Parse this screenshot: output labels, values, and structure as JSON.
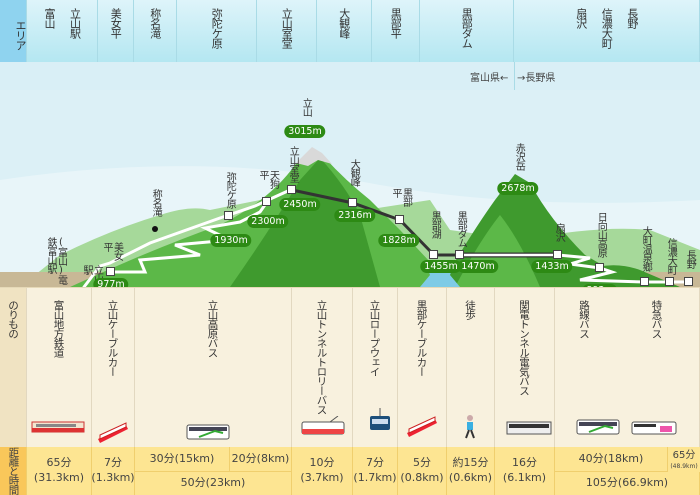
{
  "header": {
    "area_label": "エリア",
    "columns": [
      [
        "富山",
        "立山駅"
      ],
      [
        "美女平"
      ],
      [
        "称名滝"
      ],
      [
        "弥陀ケ原"
      ],
      [
        "立山室堂"
      ],
      [
        "大観峰"
      ],
      [
        "黒部平"
      ],
      [
        "黒部ダム"
      ],
      [
        "扇沢",
        "信濃大町",
        "長野"
      ]
    ],
    "pref_left": "富山県←",
    "pref_right": "→長野県"
  },
  "map": {
    "peaks": [
      {
        "name": "立山",
        "elevation": "3015m"
      },
      {
        "name": "赤沢岳",
        "elevation": "2678m"
      }
    ],
    "stations": [
      {
        "name": "(富山)電鉄富山駅",
        "elevation": ""
      },
      {
        "name": "立山駅",
        "elevation": "475m"
      },
      {
        "name": "美女平",
        "elevation": "977m"
      },
      {
        "name": "称名滝",
        "elevation": ""
      },
      {
        "name": "弥陀ケ原",
        "elevation": "1930m"
      },
      {
        "name": "天狗平",
        "elevation": "2300m"
      },
      {
        "name": "立山室堂",
        "elevation": "2450m"
      },
      {
        "name": "大観峰",
        "elevation": "2316m"
      },
      {
        "name": "黒部平",
        "elevation": "1828m"
      },
      {
        "name": "黒部湖",
        "elevation": "1455m"
      },
      {
        "name": "黒部ダム",
        "elevation": "1470m"
      },
      {
        "name": "扇沢",
        "elevation": "1433m"
      },
      {
        "name": "日向山高原",
        "elevation": "893m"
      },
      {
        "name": "大町温泉郷",
        "elevation": ""
      },
      {
        "name": "信濃大町",
        "elevation": ""
      },
      {
        "name": "長野",
        "elevation": ""
      }
    ],
    "colors": {
      "sky": "#dcf0f6",
      "mountain_dark": "#3f9a2e",
      "mountain": "#5cb848",
      "hill": "#a6d99a",
      "ground": "#c8b896",
      "badge": "#2d8a14"
    }
  },
  "vehicles": {
    "row_label": "のりもの",
    "items": [
      {
        "name": "富山地方鉄道",
        "icon": "train-icon"
      },
      {
        "name": "立山ケーブルカー",
        "icon": "cable-car-icon"
      },
      {
        "name": "立山高原バス",
        "icon": "bus-icon"
      },
      {
        "name": "立山トンネルトロリーバス",
        "icon": "trolley-bus-icon"
      },
      {
        "name": "立山ロープウェイ",
        "icon": "ropeway-icon"
      },
      {
        "name": "黒部ケーブルカー",
        "icon": "cable-car-icon"
      },
      {
        "name": "徒歩",
        "icon": "walker-icon"
      },
      {
        "name": "関電トンネル電気バス",
        "icon": "electric-bus-icon"
      },
      {
        "name": "路線バス",
        "icon": "bus-icon"
      },
      {
        "name": "特急バス",
        "icon": "express-bus-icon"
      }
    ]
  },
  "times": {
    "row_label": "距離と時間",
    "cells": [
      "65分\n(31.3km)",
      "7分\n(1.3km)",
      "30分(15km)",
      "20分(8km)",
      "50分(23km)",
      "10分\n(3.7km)",
      "7分\n(1.7km)",
      "5分\n(0.8km)",
      "約15分\n(0.6km)",
      "16分\n(6.1km)",
      "40分(18km)",
      "65分",
      "(48.9km)",
      "105分(66.9km)"
    ]
  }
}
